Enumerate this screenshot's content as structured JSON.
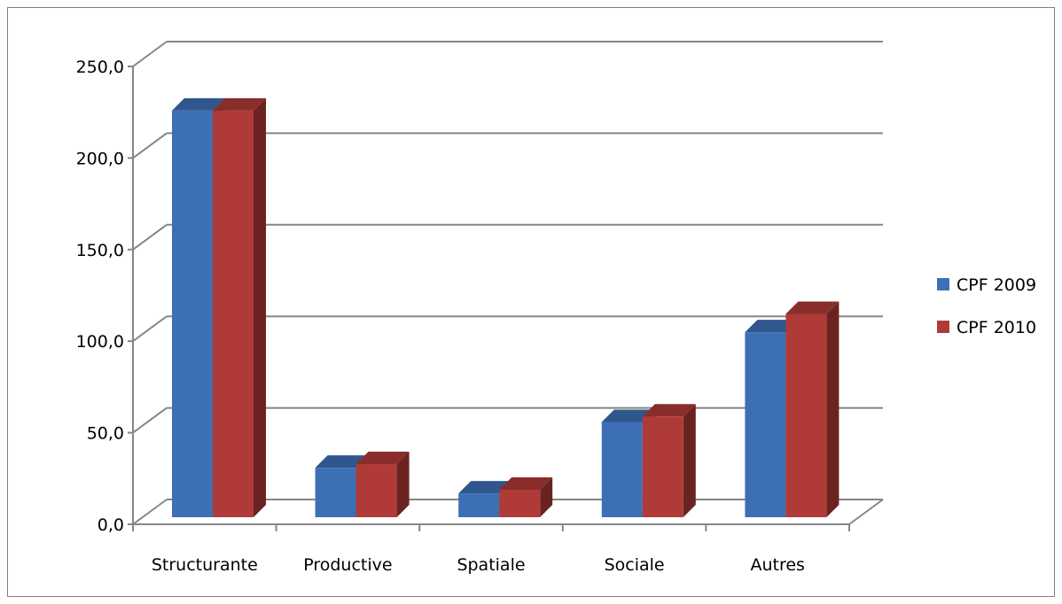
{
  "chart_data": {
    "type": "bar",
    "title": "",
    "xlabel": "",
    "ylabel": "",
    "categories": [
      "Structurante",
      "Productive",
      "Spatiale",
      "Sociale",
      "Autres"
    ],
    "series": [
      {
        "name": "CPF 2009",
        "color": "#3d6fb5",
        "values": [
          222.0,
          27.0,
          13.0,
          52.0,
          101.0
        ]
      },
      {
        "name": "CPF 2010",
        "color": "#b03a37",
        "values": [
          222.0,
          29.0,
          15.0,
          55.0,
          111.0
        ]
      }
    ],
    "ylim": [
      0,
      250
    ],
    "yticks": [
      "0,0",
      "50,0",
      "100,0",
      "150,0",
      "200,0",
      "250,0"
    ],
    "grid": true,
    "legend_position": "right",
    "style": "3d-clustered-column"
  }
}
